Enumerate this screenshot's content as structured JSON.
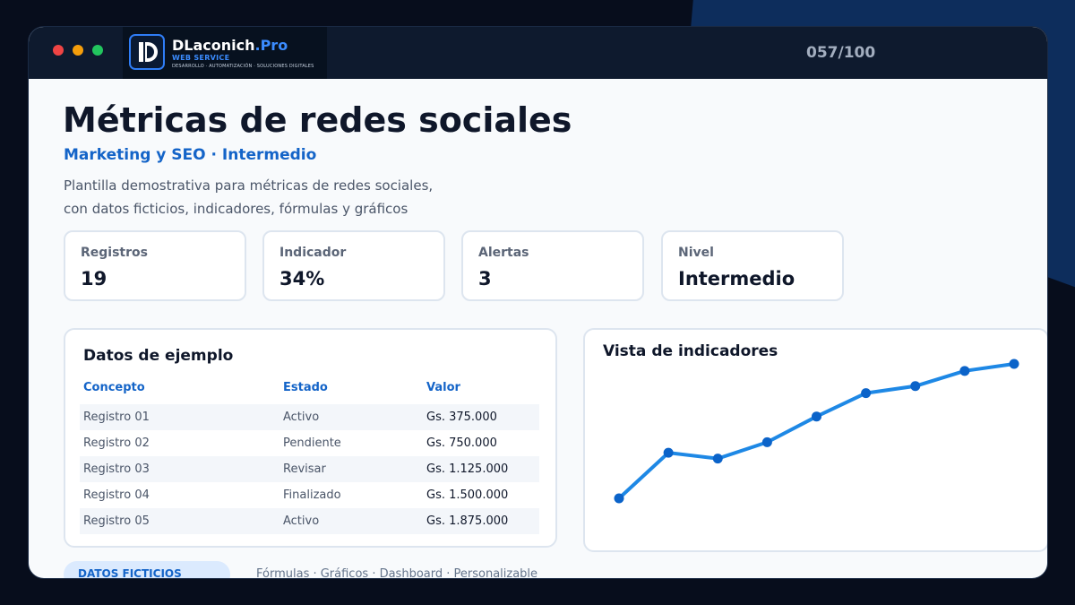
{
  "window": {
    "controls": [
      "close",
      "minimize",
      "maximize"
    ],
    "counter": "057/100"
  },
  "logo": {
    "name_main": "DLaconich",
    "name_accent": ".Pro",
    "service": "WEB SERVICE",
    "tagline": "DESARROLLO · AUTOMATIZACIÓN · SOLUCIONES DIGITALES"
  },
  "header": {
    "title": "Métricas de redes sociales",
    "subtitle": "Marketing y SEO  ·  Intermedio",
    "description_line1": "Plantilla demostrativa para métricas de redes sociales,",
    "description_line2": "con datos ficticios, indicadores, fórmulas y gráficos"
  },
  "kpis": [
    {
      "label": "Registros",
      "value": "19"
    },
    {
      "label": "Indicador",
      "value": "34%"
    },
    {
      "label": "Alertas",
      "value": "3"
    },
    {
      "label": "Nivel",
      "value": "Intermedio"
    }
  ],
  "table": {
    "title": "Datos de ejemplo",
    "columns": [
      "Concepto",
      "Estado",
      "Valor"
    ],
    "rows": [
      [
        "Registro 01",
        "Activo",
        "Gs. 375.000"
      ],
      [
        "Registro 02",
        "Pendiente",
        "Gs. 750.000"
      ],
      [
        "Registro 03",
        "Revisar",
        "Gs. 1.125.000"
      ],
      [
        "Registro 04",
        "Finalizado",
        "Gs. 1.500.000"
      ],
      [
        "Registro 05",
        "Activo",
        "Gs. 1.875.000"
      ]
    ]
  },
  "chart_panel": {
    "title": "Vista de indicadores"
  },
  "chart_data": {
    "type": "line",
    "title": "Vista de indicadores",
    "x": [
      1,
      2,
      3,
      4,
      5,
      6,
      7,
      8,
      9
    ],
    "series": [
      {
        "values": [
          0,
          39,
          34,
          48,
          70,
          90,
          96,
          109,
          115
        ]
      }
    ],
    "ylim": [
      0,
      115
    ],
    "grid": false,
    "color": "#1e88e5",
    "marker_color": "#0b63c9"
  },
  "footer": {
    "badge": "DATOS FICTICIOS",
    "text": "Fórmulas · Gráficos · Dashboard · Personalizable"
  },
  "colors": {
    "accent": "#1464c8",
    "titlebar": "#0e1a2e",
    "page_bg": "#070d1c"
  }
}
